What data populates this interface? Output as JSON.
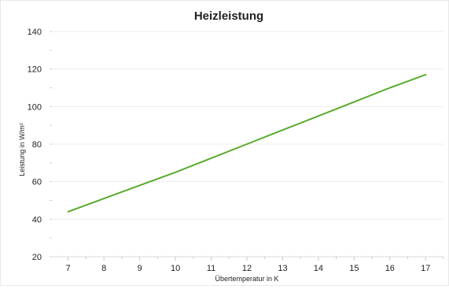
{
  "chart_data": {
    "type": "line",
    "title": "Heizleistung",
    "xlabel": "Übertemperatur in K",
    "ylabel": "Leistung in W/m²",
    "xlim": [
      6.5,
      17.5
    ],
    "ylim": [
      20,
      140
    ],
    "x_ticks": [
      7,
      8,
      9,
      10,
      11,
      12,
      13,
      14,
      15,
      16,
      17
    ],
    "y_ticks": [
      20,
      40,
      60,
      80,
      100,
      120,
      140
    ],
    "grid": true,
    "legend": "none",
    "series": [
      {
        "color": "#5aaa2e",
        "x": [
          7,
          8,
          9,
          10,
          11,
          12,
          13,
          14,
          15,
          16,
          17
        ],
        "y": [
          44,
          51,
          58,
          65,
          72.5,
          80,
          87.5,
          95,
          102.5,
          110,
          117
        ]
      }
    ]
  }
}
